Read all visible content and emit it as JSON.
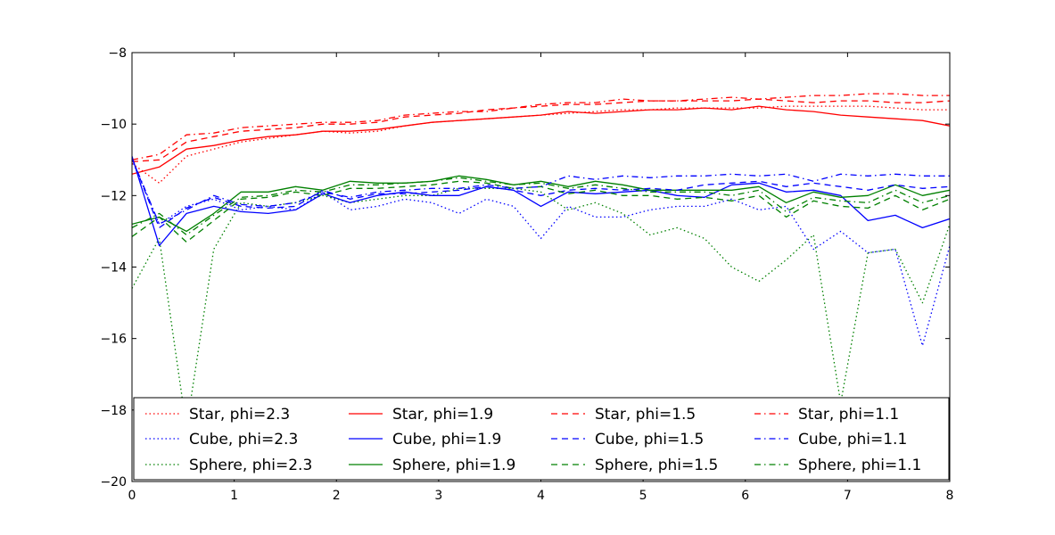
{
  "chart_data": {
    "type": "line",
    "title": "",
    "xlabel": "",
    "ylabel": "",
    "xlim": [
      0,
      8
    ],
    "ylim": [
      -20,
      -8
    ],
    "xticks": [
      0,
      1,
      2,
      3,
      4,
      5,
      6,
      7,
      8
    ],
    "yticks": [
      -20,
      -18,
      -16,
      -14,
      -12,
      -10,
      -8
    ],
    "grid": false,
    "legend_placement": "lower-center-inside",
    "legend_columns": 4,
    "x": [
      0,
      0.267,
      0.533,
      0.8,
      1.067,
      1.333,
      1.6,
      1.867,
      2.133,
      2.4,
      2.667,
      2.933,
      3.2,
      3.467,
      3.733,
      4.0,
      4.267,
      4.533,
      4.8,
      5.067,
      5.333,
      5.6,
      5.867,
      6.133,
      6.4,
      6.667,
      6.933,
      7.2,
      7.467,
      7.733,
      8.0
    ],
    "series": [
      {
        "name": "Star, phi=2.3",
        "color": "#ff0000",
        "linestyle": "dotted",
        "values": [
          -11.1,
          -11.65,
          -10.9,
          -10.7,
          -10.5,
          -10.4,
          -10.3,
          -10.2,
          -10.25,
          -10.2,
          -10.05,
          -9.95,
          -9.9,
          -9.85,
          -9.8,
          -9.75,
          -9.7,
          -9.65,
          -9.6,
          -9.6,
          -9.55,
          -9.55,
          -9.55,
          -9.55,
          -9.5,
          -9.5,
          -9.5,
          -9.5,
          -9.55,
          -9.6,
          -9.6
        ]
      },
      {
        "name": "Cube, phi=2.3",
        "color": "#0000ff",
        "linestyle": "dotted",
        "values": [
          -11.0,
          -12.8,
          -12.3,
          -12.1,
          -12.4,
          -12.3,
          -12.4,
          -11.9,
          -12.4,
          -12.3,
          -12.1,
          -12.2,
          -12.5,
          -12.1,
          -12.3,
          -13.2,
          -12.3,
          -12.6,
          -12.6,
          -12.4,
          -12.3,
          -12.3,
          -12.1,
          -12.4,
          -12.3,
          -13.5,
          -13.0,
          -13.6,
          -13.5,
          -16.2,
          -13.4
        ]
      },
      {
        "name": "Sphere, phi=2.3",
        "color": "#008000",
        "linestyle": "dotted",
        "values": [
          -14.6,
          -13.2,
          -18.5,
          -13.5,
          -12.2,
          -12.3,
          -12.2,
          -12.0,
          -12.2,
          -12.1,
          -12.0,
          -12.0,
          -11.8,
          -11.8,
          -11.8,
          -11.9,
          -12.4,
          -12.2,
          -12.5,
          -13.1,
          -12.9,
          -13.2,
          -14.0,
          -14.4,
          -13.8,
          -13.1,
          -17.8,
          -13.6,
          -13.5,
          -15.0,
          -12.8
        ]
      },
      {
        "name": "Star, phi=1.9",
        "color": "#ff0000",
        "linestyle": "solid",
        "values": [
          -11.4,
          -11.2,
          -10.7,
          -10.6,
          -10.45,
          -10.35,
          -10.3,
          -10.2,
          -10.2,
          -10.15,
          -10.05,
          -9.95,
          -9.9,
          -9.85,
          -9.8,
          -9.75,
          -9.65,
          -9.7,
          -9.65,
          -9.6,
          -9.6,
          -9.55,
          -9.6,
          -9.5,
          -9.6,
          -9.65,
          -9.75,
          -9.8,
          -9.85,
          -9.9,
          -10.05
        ]
      },
      {
        "name": "Cube, phi=1.9",
        "color": "#0000ff",
        "linestyle": "solid",
        "values": [
          -10.9,
          -13.4,
          -12.5,
          -12.3,
          -12.45,
          -12.5,
          -12.4,
          -11.95,
          -12.2,
          -12.0,
          -11.9,
          -12.0,
          -12.0,
          -11.75,
          -11.85,
          -12.3,
          -11.9,
          -11.95,
          -11.9,
          -11.85,
          -12.0,
          -12.05,
          -11.7,
          -11.65,
          -11.9,
          -11.85,
          -12.0,
          -12.7,
          -12.55,
          -12.9,
          -12.65
        ]
      },
      {
        "name": "Sphere, phi=1.9",
        "color": "#008000",
        "linestyle": "solid",
        "values": [
          -12.8,
          -12.6,
          -13.0,
          -12.5,
          -11.9,
          -11.9,
          -11.75,
          -11.85,
          -11.6,
          -11.65,
          -11.65,
          -11.6,
          -11.45,
          -11.55,
          -11.7,
          -11.6,
          -11.75,
          -11.6,
          -11.7,
          -11.85,
          -11.85,
          -11.85,
          -11.85,
          -11.75,
          -12.2,
          -11.9,
          -12.05,
          -12.0,
          -11.7,
          -12.0,
          -11.85
        ]
      },
      {
        "name": "Star, phi=1.5",
        "color": "#ff0000",
        "linestyle": "dashed",
        "values": [
          -11.05,
          -11.0,
          -10.5,
          -10.35,
          -10.2,
          -10.15,
          -10.1,
          -10.0,
          -10.0,
          -9.95,
          -9.8,
          -9.75,
          -9.7,
          -9.6,
          -9.55,
          -9.5,
          -9.45,
          -9.45,
          -9.4,
          -9.35,
          -9.35,
          -9.35,
          -9.35,
          -9.3,
          -9.35,
          -9.4,
          -9.35,
          -9.35,
          -9.4,
          -9.4,
          -9.35
        ]
      },
      {
        "name": "Cube, phi=1.5",
        "color": "#0000ff",
        "linestyle": "dashed",
        "values": [
          -10.95,
          -12.9,
          -12.35,
          -12.05,
          -12.3,
          -12.35,
          -12.3,
          -11.85,
          -12.1,
          -11.95,
          -11.95,
          -11.9,
          -11.85,
          -11.75,
          -11.85,
          -12.0,
          -11.85,
          -11.8,
          -11.85,
          -11.8,
          -11.85,
          -11.7,
          -11.65,
          -11.6,
          -11.75,
          -11.65,
          -11.75,
          -11.85,
          -11.7,
          -11.8,
          -11.75
        ]
      },
      {
        "name": "Sphere, phi=1.5",
        "color": "#008000",
        "linestyle": "dashed",
        "values": [
          -13.15,
          -12.6,
          -13.3,
          -12.7,
          -12.1,
          -12.05,
          -11.9,
          -12.0,
          -11.8,
          -11.8,
          -11.75,
          -11.7,
          -11.6,
          -11.65,
          -11.8,
          -11.75,
          -11.95,
          -11.85,
          -12.0,
          -12.0,
          -12.1,
          -12.05,
          -12.15,
          -12.0,
          -12.6,
          -12.15,
          -12.3,
          -12.35,
          -12.0,
          -12.4,
          -12.1
        ]
      },
      {
        "name": "Star, phi=1.1",
        "color": "#ff0000",
        "linestyle": "dashdot",
        "values": [
          -11.0,
          -10.85,
          -10.3,
          -10.25,
          -10.1,
          -10.05,
          -10.0,
          -9.95,
          -9.95,
          -9.9,
          -9.75,
          -9.7,
          -9.65,
          -9.65,
          -9.55,
          -9.45,
          -9.4,
          -9.4,
          -9.3,
          -9.35,
          -9.35,
          -9.3,
          -9.25,
          -9.3,
          -9.25,
          -9.2,
          -9.2,
          -9.15,
          -9.15,
          -9.2,
          -9.2
        ]
      },
      {
        "name": "Cube, phi=1.1",
        "color": "#0000ff",
        "linestyle": "dashdot",
        "values": [
          -10.95,
          -12.8,
          -12.4,
          -12.0,
          -12.25,
          -12.3,
          -12.2,
          -11.9,
          -12.05,
          -11.9,
          -11.85,
          -11.8,
          -11.8,
          -11.7,
          -11.8,
          -11.75,
          -11.45,
          -11.55,
          -11.45,
          -11.5,
          -11.45,
          -11.45,
          -11.4,
          -11.45,
          -11.4,
          -11.6,
          -11.4,
          -11.45,
          -11.4,
          -11.45,
          -11.45
        ]
      },
      {
        "name": "Sphere, phi=1.1",
        "color": "#008000",
        "linestyle": "dashdot",
        "values": [
          -12.9,
          -12.5,
          -13.1,
          -12.55,
          -12.05,
          -12.0,
          -11.85,
          -11.9,
          -11.7,
          -11.7,
          -11.65,
          -11.6,
          -11.5,
          -11.6,
          -11.7,
          -11.65,
          -11.8,
          -11.7,
          -11.8,
          -11.9,
          -11.9,
          -11.9,
          -12.0,
          -11.85,
          -12.45,
          -12.05,
          -12.15,
          -12.2,
          -11.85,
          -12.2,
          -12.0
        ]
      }
    ]
  }
}
